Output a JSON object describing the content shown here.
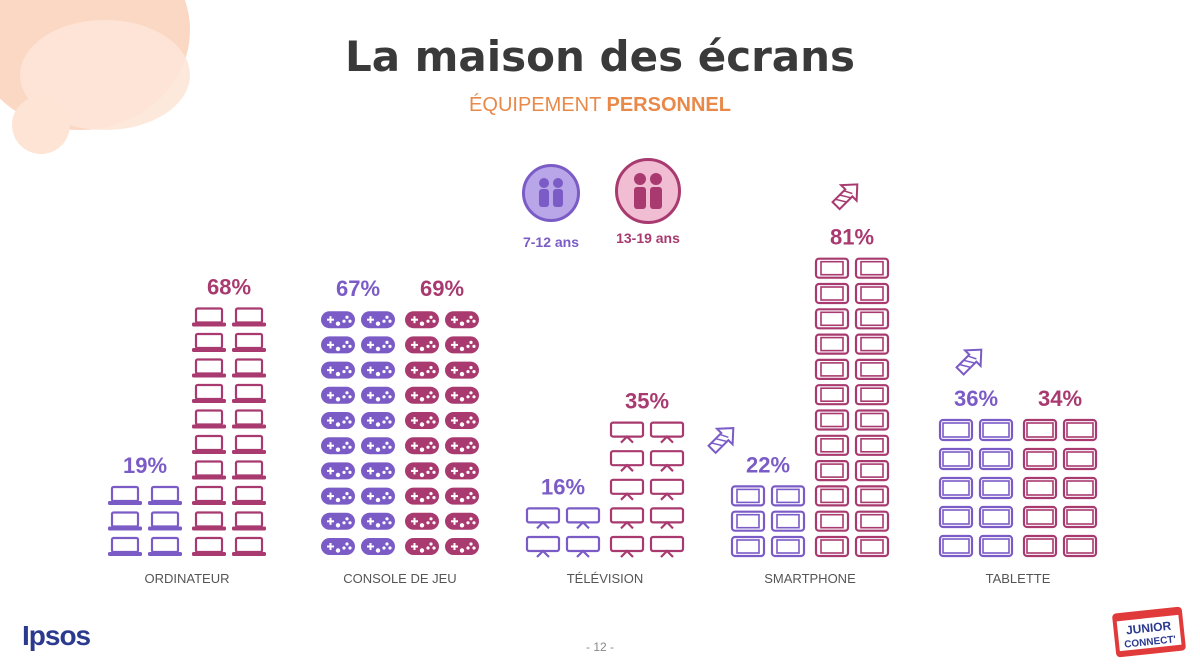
{
  "title": "La maison des écrans",
  "subtitle_part1": "ÉQUIPEMENT ",
  "subtitle_part2": "PERSONNEL",
  "page_number": "- 12 -",
  "logo_text": "Ipsos",
  "partner_logo_text": "JUNIOR CONNECT'",
  "colors": {
    "series_1": "#7b5cc7",
    "series_2": "#a83a6f",
    "title": "#3a3a3a",
    "subtitle": "#e8894a"
  },
  "chart_data": {
    "type": "bar",
    "categories": [
      "ORDINATEUR",
      "CONSOLE DE JEU",
      "TÉLÉVISION",
      "SMARTPHONE",
      "TABLETTE"
    ],
    "icons": [
      "laptop-icon",
      "gamepad-icon",
      "tv-icon",
      "smartphone-icon",
      "tablet-icon"
    ],
    "series": [
      {
        "name": "7-12 ans",
        "values": [
          19,
          67,
          16,
          22,
          36
        ],
        "value_labels": [
          "19%",
          "67%",
          "16%",
          "22%",
          "36%"
        ]
      },
      {
        "name": "13-19 ans",
        "values": [
          68,
          69,
          35,
          81,
          34
        ],
        "value_labels": [
          "68%",
          "69%",
          "35%",
          "81%",
          "34%"
        ]
      }
    ],
    "trend_up_markers": [
      {
        "category": "SMARTPHONE",
        "series": "7-12 ans"
      },
      {
        "category": "SMARTPHONE",
        "series": "13-19 ans"
      },
      {
        "category": "TABLETTE",
        "series": "7-12 ans"
      }
    ],
    "unit": "%",
    "legend_position": "top-center",
    "grid": false
  }
}
